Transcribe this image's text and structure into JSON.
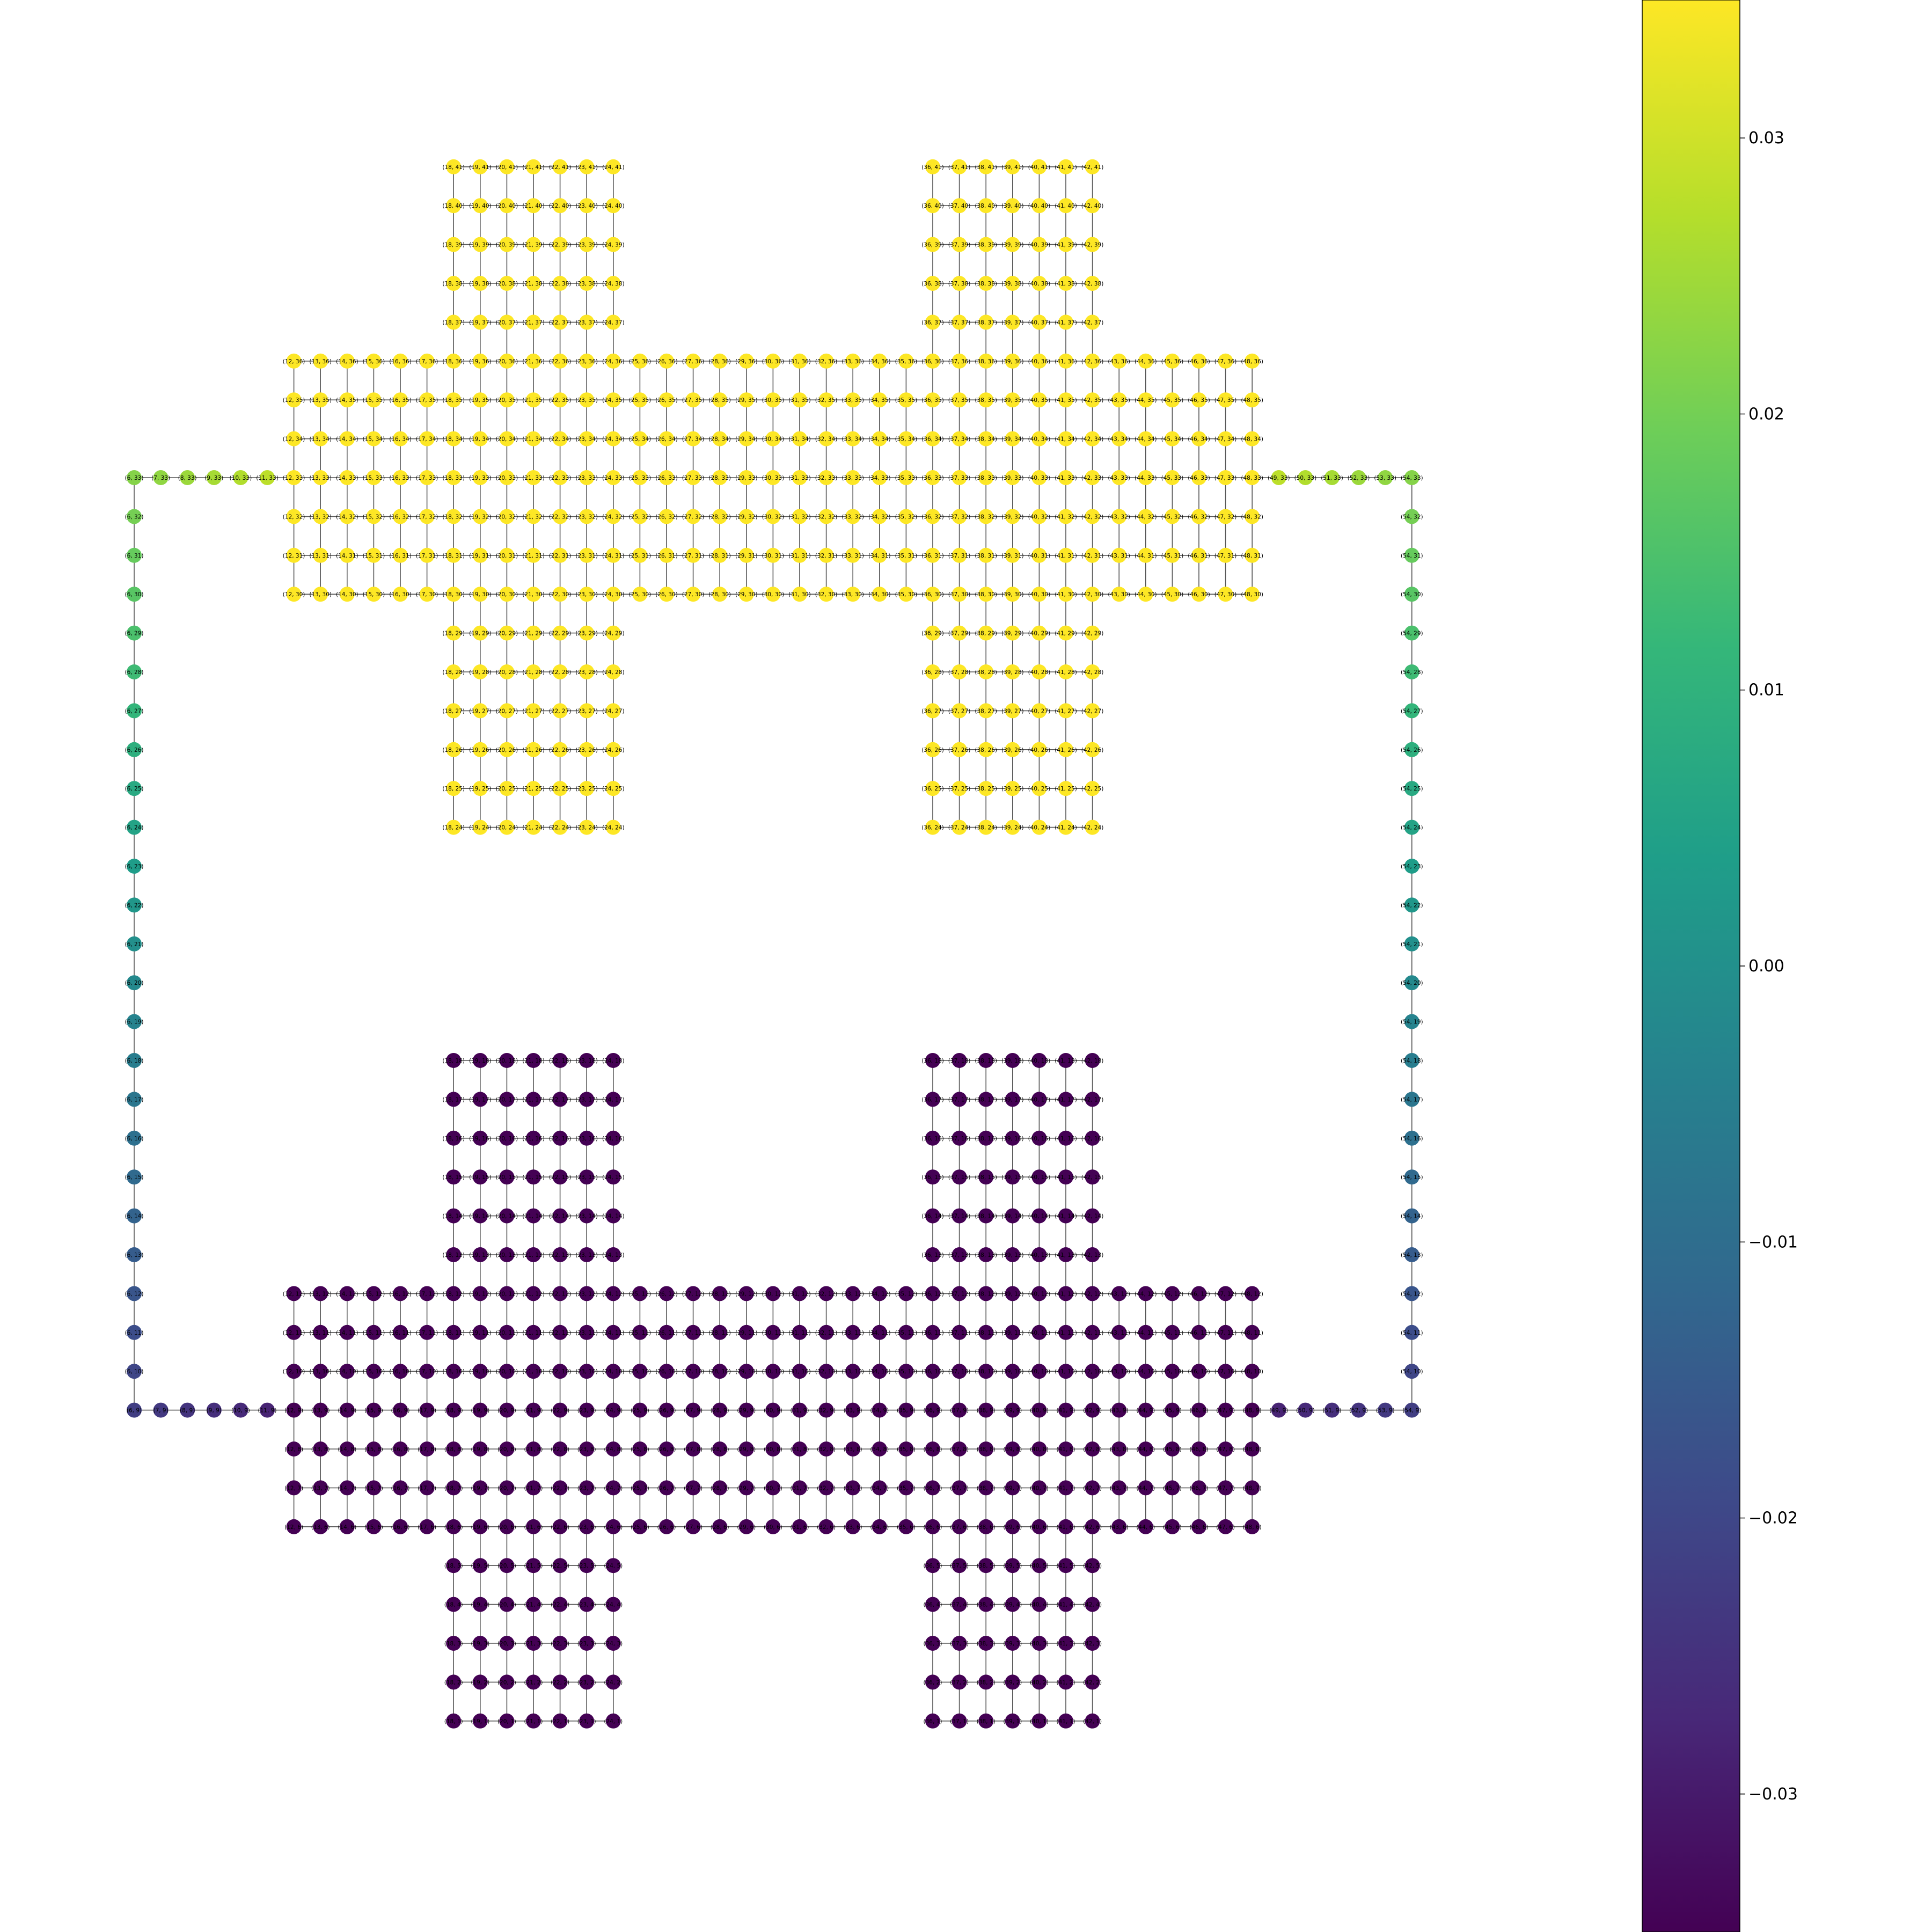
{
  "chart_data": {
    "type": "scatter",
    "subtype": "graph-network",
    "title": "",
    "xlabel": "",
    "ylabel": "",
    "grid": false,
    "legend": "none",
    "x_range": [
      6,
      54
    ],
    "y_range": [
      1,
      41
    ],
    "node_label_format": "({x}, {y})",
    "edges": "grid-adjacent nodes (x±1 or y±1) are connected",
    "colormap": {
      "name": "viridis",
      "stops": [
        "#440154",
        "#482878",
        "#3e4989",
        "#31688e",
        "#26828e",
        "#1f9e89",
        "#35b779",
        "#6ece58",
        "#b5de2b",
        "#fde725"
      ],
      "vmin": -0.035,
      "vmax": 0.035,
      "ticks": [
        -0.03,
        -0.02,
        -0.01,
        0.0,
        0.01,
        0.02,
        0.03
      ],
      "tick_labels": [
        "−0.03",
        "−0.02",
        "−0.01",
        "0.00",
        "0.01",
        "0.02",
        "0.03"
      ]
    },
    "regions": [
      {
        "name": "top-bar",
        "x": [
          12,
          48
        ],
        "y": [
          30,
          36
        ],
        "value": 0.035
      },
      {
        "name": "top-left-upper-finger",
        "x": [
          18,
          24
        ],
        "y": [
          37,
          41
        ],
        "value": 0.035
      },
      {
        "name": "top-right-upper-finger",
        "x": [
          36,
          42
        ],
        "y": [
          37,
          41
        ],
        "value": 0.035
      },
      {
        "name": "top-left-lower-finger",
        "x": [
          18,
          24
        ],
        "y": [
          24,
          29
        ],
        "value": 0.035
      },
      {
        "name": "top-right-lower-finger",
        "x": [
          36,
          42
        ],
        "y": [
          24,
          29
        ],
        "value": 0.035
      },
      {
        "name": "bottom-bar",
        "x": [
          12,
          48
        ],
        "y": [
          6,
          12
        ],
        "value": -0.035
      },
      {
        "name": "bottom-left-upper-finger",
        "x": [
          18,
          24
        ],
        "y": [
          13,
          18
        ],
        "value": -0.035
      },
      {
        "name": "bottom-right-upper-finger",
        "x": [
          36,
          42
        ],
        "y": [
          13,
          18
        ],
        "value": -0.035
      },
      {
        "name": "bottom-left-lower-finger",
        "x": [
          18,
          24
        ],
        "y": [
          1,
          5
        ],
        "value": -0.035
      },
      {
        "name": "bottom-right-lower-finger",
        "x": [
          36,
          42
        ],
        "y": [
          1,
          5
        ],
        "value": -0.035
      }
    ],
    "wire": {
      "top_y": 33,
      "bottom_y": 9,
      "left_x": 6,
      "right_x": 54,
      "top_left_segment_x": [
        6,
        11
      ],
      "top_right_segment_x": [
        49,
        54
      ],
      "bottom_left_segment_x": [
        6,
        11
      ],
      "bottom_right_segment_x": [
        49,
        54
      ],
      "top_corner_value": 0.022,
      "bottom_corner_value": -0.022,
      "top_to_bar_end_value": 0.028,
      "bottom_to_bar_end_value": -0.028
    }
  }
}
